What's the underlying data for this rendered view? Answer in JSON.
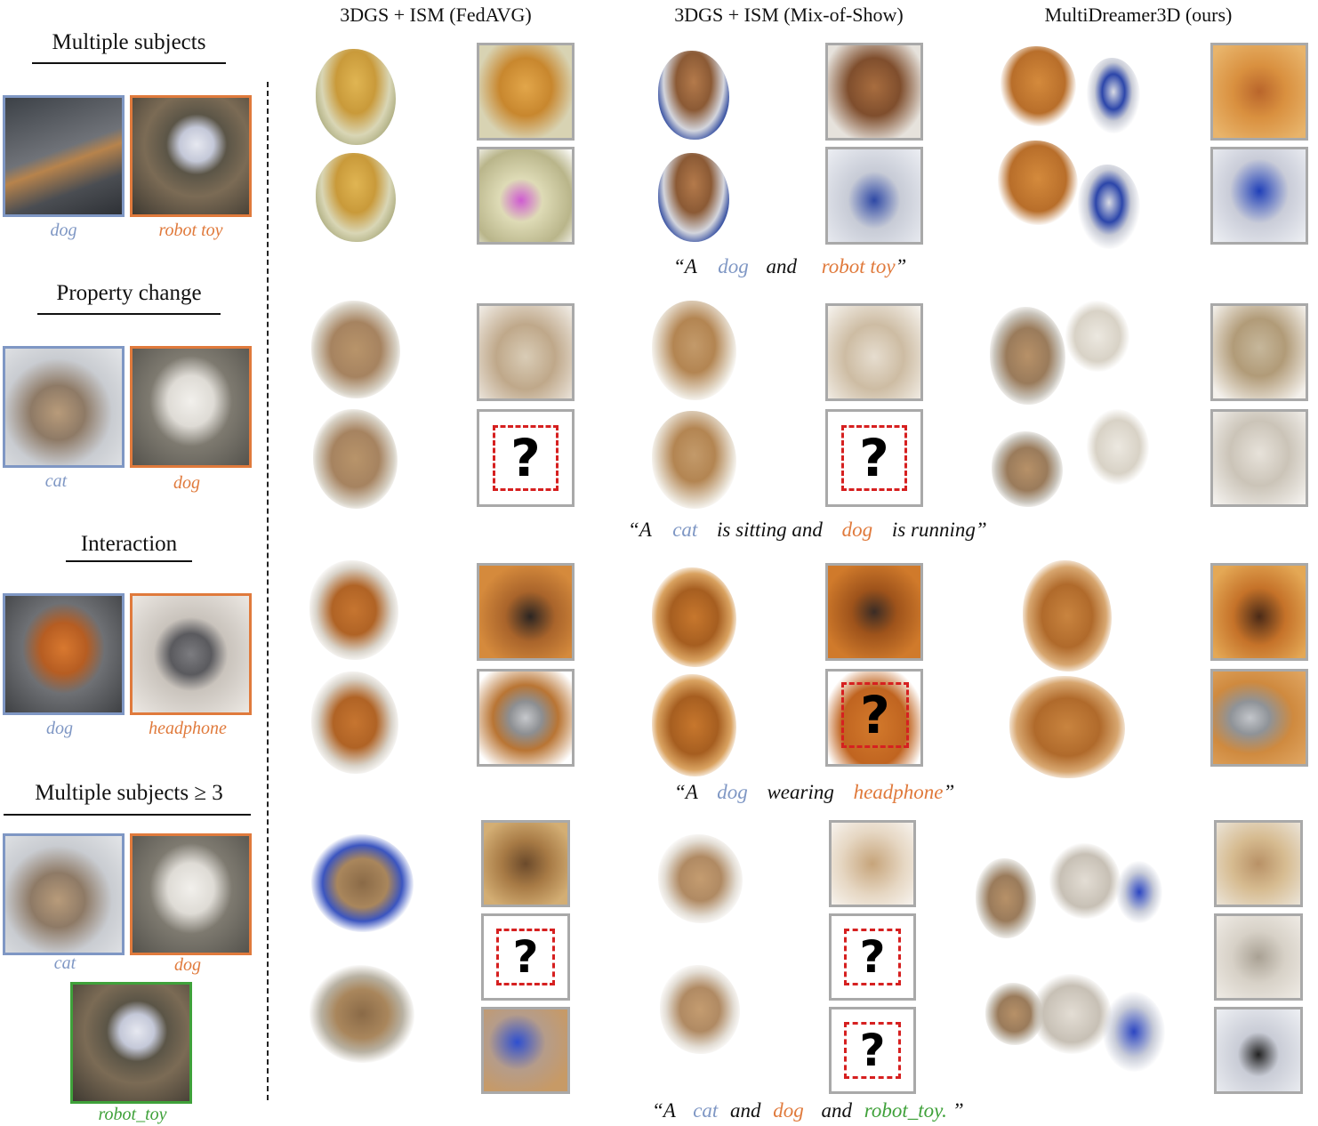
{
  "column_headers": {
    "fedavg": "3DGS + ISM  (FedAVG)",
    "mixofshow": "3DGS + ISM (Mix-of-Show)",
    "ours": "MultiDreamer3D (ours)"
  },
  "sections": [
    {
      "title": "Multiple subjects",
      "refs": [
        {
          "label": "dog"
        },
        {
          "label": "robot toy"
        }
      ],
      "prompt": {
        "open": "“A",
        "s1": "dog",
        "mid": "and",
        "s2": "robot toy",
        "close": "”"
      }
    },
    {
      "title": "Property change",
      "refs": [
        {
          "label": "cat"
        },
        {
          "label": "dog"
        }
      ],
      "prompt": {
        "open": "“A",
        "s1": "cat",
        "mid": "is sitting and",
        "s2": "dog",
        "close": "is running”"
      }
    },
    {
      "title": "Interaction",
      "refs": [
        {
          "label": "dog"
        },
        {
          "label": "headphone"
        }
      ],
      "prompt": {
        "open": "“A",
        "s1": "dog",
        "mid": "wearing",
        "s2": "headphone",
        "close": "”"
      }
    },
    {
      "title": "Multiple subjects ≥ 3",
      "refs": [
        {
          "label": "cat"
        },
        {
          "label": "dog"
        },
        {
          "label": "robot_toy"
        }
      ],
      "prompt": {
        "open": "“A",
        "s1": "cat",
        "mid1": "and",
        "s2": "dog",
        "mid2": "and",
        "s3": "robot_toy.",
        "close": "”"
      }
    }
  ],
  "missing_marker": "?",
  "colors": {
    "subject1": "#7f97c4",
    "subject2": "#e07a3c",
    "subject3": "#3fa13a",
    "zoom_border": "#a9a9a9",
    "missing_border": "#d62020"
  }
}
